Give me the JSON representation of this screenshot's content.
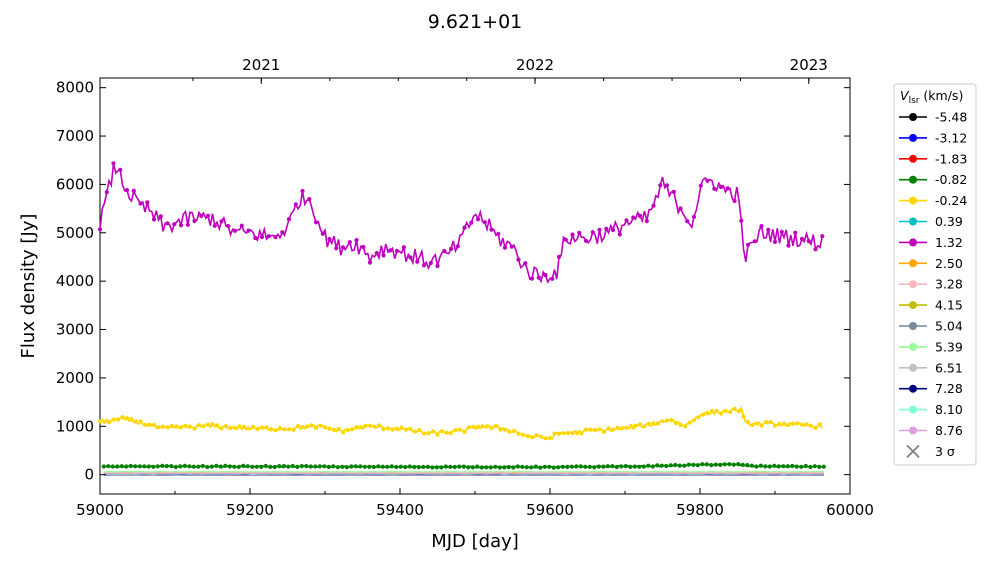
{
  "chart_data": {
    "type": "line",
    "title": "9.621+01",
    "xlabel": "MJD [day]",
    "ylabel": "Flux density [Jy]",
    "xlim": [
      59000,
      60000
    ],
    "ylim": [
      -400,
      8200
    ],
    "xticks": [
      59000,
      59200,
      59400,
      59600,
      59800,
      60000
    ],
    "yticks": [
      0,
      1000,
      2000,
      3000,
      4000,
      5000,
      6000,
      7000,
      8000
    ],
    "top_axis": {
      "ticks": [
        {
          "label": "2021",
          "mjd": 59215
        },
        {
          "label": "2022",
          "mjd": 59580
        },
        {
          "label": "2023",
          "mjd": 59945
        }
      ]
    },
    "grid": false,
    "legend": {
      "placement": "outside-right",
      "title": "V",
      "title_sub": "lsr",
      "title_unit": " (km/s)",
      "sigma_label": "3 σ"
    },
    "series": [
      {
        "name": "-5.48",
        "color": "#000000",
        "level": 0
      },
      {
        "name": "-3.12",
        "color": "#0000ff",
        "level": 0
      },
      {
        "name": "-1.83",
        "color": "#ff0000",
        "level": 0
      },
      {
        "name": "-0.82",
        "color": "#008000",
        "points": [
          [
            59005,
            165
          ],
          [
            59100,
            170
          ],
          [
            59200,
            170
          ],
          [
            59300,
            165
          ],
          [
            59400,
            160
          ],
          [
            59500,
            160
          ],
          [
            59600,
            155
          ],
          [
            59700,
            170
          ],
          [
            59750,
            180
          ],
          [
            59800,
            205
          ],
          [
            59850,
            210
          ],
          [
            59870,
            175
          ],
          [
            59960,
            165
          ]
        ]
      },
      {
        "name": "-0.24",
        "color": "#ffd700",
        "points": [
          [
            59000,
            1100
          ],
          [
            59030,
            1150
          ],
          [
            59060,
            1050
          ],
          [
            59080,
            950
          ],
          [
            59110,
            980
          ],
          [
            59150,
            1000
          ],
          [
            59200,
            950
          ],
          [
            59250,
            950
          ],
          [
            59290,
            1000
          ],
          [
            59320,
            900
          ],
          [
            59360,
            1000
          ],
          [
            59400,
            950
          ],
          [
            59440,
            850
          ],
          [
            59480,
            900
          ],
          [
            59510,
            1000
          ],
          [
            59540,
            950
          ],
          [
            59570,
            800
          ],
          [
            59600,
            750
          ],
          [
            59610,
            850
          ],
          [
            59650,
            900
          ],
          [
            59700,
            950
          ],
          [
            59740,
            1050
          ],
          [
            59760,
            1150
          ],
          [
            59780,
            1000
          ],
          [
            59800,
            1250
          ],
          [
            59830,
            1300
          ],
          [
            59855,
            1350
          ],
          [
            59860,
            1050
          ],
          [
            59900,
            1050
          ],
          [
            59960,
            1000
          ]
        ]
      },
      {
        "name": "0.39",
        "color": "#00bfbf",
        "level": 5
      },
      {
        "name": "1.32",
        "color": "#bf00bf",
        "points": [
          [
            59000,
            5200
          ],
          [
            59010,
            5800
          ],
          [
            59020,
            6400
          ],
          [
            59035,
            5900
          ],
          [
            59050,
            5600
          ],
          [
            59070,
            5400
          ],
          [
            59085,
            5100
          ],
          [
            59100,
            5200
          ],
          [
            59120,
            5300
          ],
          [
            59150,
            5300
          ],
          [
            59180,
            5000
          ],
          [
            59200,
            5000
          ],
          [
            59230,
            4900
          ],
          [
            59250,
            5100
          ],
          [
            59265,
            5700
          ],
          [
            59280,
            5700
          ],
          [
            59300,
            4900
          ],
          [
            59320,
            4700
          ],
          [
            59340,
            4800
          ],
          [
            59360,
            4500
          ],
          [
            59380,
            4700
          ],
          [
            59400,
            4600
          ],
          [
            59420,
            4500
          ],
          [
            59440,
            4400
          ],
          [
            59460,
            4500
          ],
          [
            59480,
            4800
          ],
          [
            59500,
            5400
          ],
          [
            59515,
            5200
          ],
          [
            59530,
            4900
          ],
          [
            59550,
            4700
          ],
          [
            59570,
            4200
          ],
          [
            59590,
            4100
          ],
          [
            59610,
            4200
          ],
          [
            59620,
            4900
          ],
          [
            59650,
            4900
          ],
          [
            59680,
            5000
          ],
          [
            59700,
            5200
          ],
          [
            59730,
            5300
          ],
          [
            59750,
            6000
          ],
          [
            59770,
            5600
          ],
          [
            59790,
            5200
          ],
          [
            59800,
            5900
          ],
          [
            59815,
            6100
          ],
          [
            59830,
            5900
          ],
          [
            59850,
            5800
          ],
          [
            59860,
            4500
          ],
          [
            59880,
            5000
          ],
          [
            59920,
            4900
          ],
          [
            59960,
            4800
          ]
        ]
      },
      {
        "name": "2.50",
        "color": "#ffa500",
        "level": 40
      },
      {
        "name": "3.28",
        "color": "#ffb6c1",
        "level": 35
      },
      {
        "name": "4.15",
        "color": "#bfbf00",
        "level": 20
      },
      {
        "name": "5.04",
        "color": "#778899",
        "level": 0
      },
      {
        "name": "5.39",
        "color": "#98fb98",
        "level": 60
      },
      {
        "name": "6.51",
        "color": "#c0c0c0",
        "level": 15
      },
      {
        "name": "7.28",
        "color": "#000080",
        "level": 0
      },
      {
        "name": "8.10",
        "color": "#7fffd4",
        "level": 10
      },
      {
        "name": "8.76",
        "color": "#dda0dd",
        "level": 20
      }
    ]
  }
}
